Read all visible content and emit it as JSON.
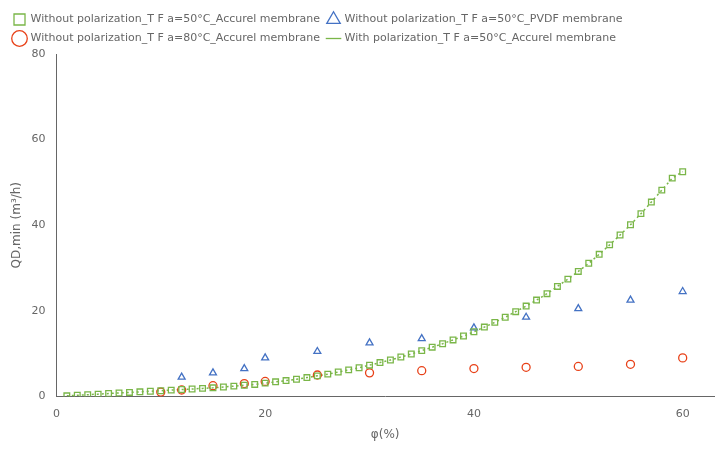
{
  "chart_data": {
    "type": "scatter",
    "x_label": "φ(%)",
    "y_label": "QD,min (m³/h)",
    "xlim": [
      0,
      63
    ],
    "ylim": [
      0,
      80
    ],
    "xticks": [
      0,
      20,
      40,
      60
    ],
    "yticks": [
      0,
      20,
      40,
      60,
      80
    ],
    "grid": false,
    "legend": "upper left",
    "series": [
      {
        "name": "Without polarization_T F a=50°C_Accurel membrane",
        "color": "#7ab648",
        "marker": "square",
        "line_style": "none",
        "x": [
          1,
          2,
          3,
          4,
          5,
          6,
          7,
          8,
          9,
          10,
          11,
          12,
          13,
          14,
          15,
          16,
          17,
          18,
          19,
          20,
          21,
          22,
          23,
          24,
          25,
          26,
          27,
          28,
          29,
          30,
          31,
          32,
          33,
          34,
          35,
          36,
          37,
          38,
          39,
          40,
          41,
          42,
          43,
          44,
          45,
          46,
          47,
          48,
          49,
          50,
          51,
          52,
          53,
          54,
          55,
          56,
          57,
          58,
          59,
          60
        ],
        "values": [
          0.13,
          0.27,
          0.4,
          0.53,
          0.67,
          0.8,
          0.93,
          1.07,
          1.2,
          1.33,
          1.47,
          1.6,
          1.73,
          1.87,
          2.0,
          2.2,
          2.4,
          2.6,
          2.8,
          3.1,
          3.4,
          3.7,
          4.0,
          4.4,
          4.8,
          5.2,
          5.7,
          6.2,
          6.7,
          7.3,
          7.9,
          8.5,
          9.2,
          9.9,
          10.7,
          11.5,
          12.3,
          13.2,
          14.1,
          15.1,
          16.2,
          17.3,
          18.5,
          19.8,
          21.1,
          22.5,
          24.0,
          25.7,
          27.4,
          29.2,
          31.1,
          33.2,
          35.4,
          37.7,
          40.1,
          42.7,
          45.4,
          48.2,
          51.0,
          52.5
        ]
      },
      {
        "name": "With polarization_T F a=50°C_Accurel membrane",
        "color": "#7ab648",
        "marker": "none",
        "line_style": "dotted",
        "x": [
          1,
          2,
          3,
          4,
          5,
          6,
          7,
          8,
          9,
          10,
          11,
          12,
          13,
          14,
          15,
          16,
          17,
          18,
          19,
          20,
          21,
          22,
          23,
          24,
          25,
          26,
          27,
          28,
          29,
          30,
          31,
          32,
          33,
          34,
          35,
          36,
          37,
          38,
          39,
          40,
          41,
          42,
          43,
          44,
          45,
          46,
          47,
          48,
          49,
          50,
          51,
          52,
          53,
          54,
          55,
          56,
          57,
          58,
          59,
          60
        ],
        "values": [
          0.13,
          0.27,
          0.4,
          0.53,
          0.67,
          0.8,
          0.93,
          1.07,
          1.2,
          1.33,
          1.47,
          1.6,
          1.73,
          1.87,
          2.0,
          2.2,
          2.4,
          2.6,
          2.8,
          3.1,
          3.4,
          3.7,
          4.0,
          4.4,
          4.8,
          5.2,
          5.7,
          6.2,
          6.7,
          7.3,
          7.9,
          8.5,
          9.2,
          9.9,
          10.7,
          11.5,
          12.3,
          13.2,
          14.1,
          15.1,
          16.2,
          17.3,
          18.5,
          19.8,
          21.1,
          22.5,
          24.0,
          25.7,
          27.4,
          29.2,
          31.1,
          33.2,
          35.4,
          37.7,
          40.1,
          42.7,
          45.4,
          48.2,
          51.0,
          52.5
        ]
      },
      {
        "name": "Without polarization_T F a=50°C_PVDF membrane",
        "color": "#4472c4",
        "marker": "triangle",
        "line_style": "none",
        "x": [
          12,
          15,
          18,
          20,
          25,
          30,
          35,
          40,
          45,
          50,
          55,
          60
        ],
        "values": [
          4.5,
          5.5,
          6.5,
          9.0,
          10.5,
          12.5,
          13.5,
          16.0,
          18.5,
          20.5,
          22.5,
          24.5
        ]
      },
      {
        "name": "Without polarization_T F a=80°C_Accurel membrane",
        "color": "#e84118",
        "marker": "circle",
        "line_style": "none",
        "x": [
          10,
          12,
          15,
          18,
          20,
          25,
          30,
          35,
          40,
          45,
          50,
          55,
          60
        ],
        "values": [
          1.0,
          1.5,
          2.5,
          3.0,
          3.5,
          5.0,
          5.5,
          6.0,
          6.5,
          6.8,
          7.0,
          7.5,
          9.0
        ]
      }
    ]
  }
}
